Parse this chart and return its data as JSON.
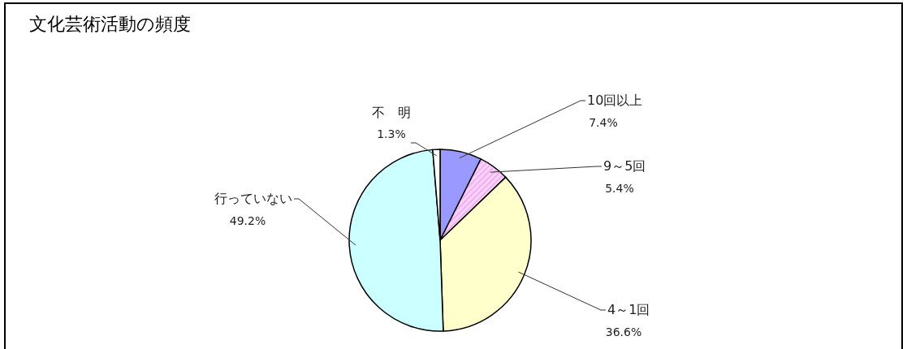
{
  "chart_data": {
    "type": "pie",
    "title": "文化芸術活動の頻度",
    "categories": [
      "10回以上",
      "9～5回",
      "4～1回",
      "行っていない",
      "不　明"
    ],
    "values": [
      7.4,
      5.4,
      36.6,
      49.2,
      1.3
    ],
    "colors": [
      "#9999ff",
      "#ffccff",
      "#ffffcc",
      "#ccffff",
      "#ffffff"
    ],
    "value_labels": [
      "7.4%",
      "5.4%",
      "36.6%",
      "49.2%",
      "1.3%"
    ]
  }
}
